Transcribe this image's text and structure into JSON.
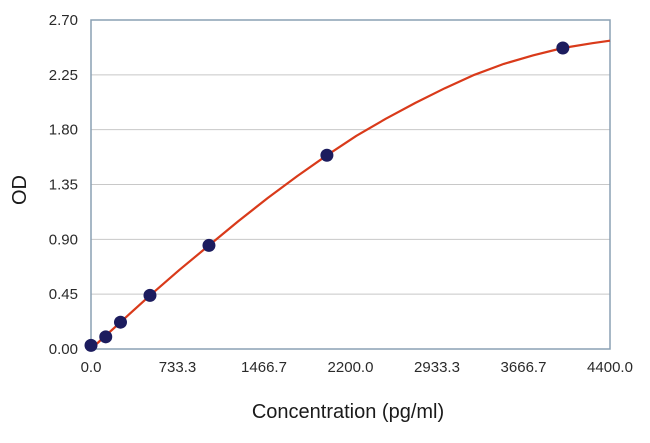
{
  "chart_data": {
    "type": "scatter",
    "title": "",
    "xlabel": "Concentration (pg/ml)",
    "ylabel": "OD",
    "xlim": [
      0,
      4400
    ],
    "ylim": [
      0,
      2.7
    ],
    "x_ticks": [
      "0.0",
      "733.3",
      "1466.7",
      "2200.0",
      "2933.3",
      "3666.7",
      "4400.0"
    ],
    "y_ticks": [
      "0.00",
      "0.45",
      "0.90",
      "1.35",
      "1.80",
      "2.25",
      "2.70"
    ],
    "grid": "horizontal",
    "legend": "none",
    "series": [
      {
        "type": "scatter",
        "x": [
          0,
          125,
          250,
          500,
          1000,
          2000,
          4000
        ],
        "y": [
          0.03,
          0.1,
          0.22,
          0.44,
          0.85,
          1.59,
          2.47
        ]
      },
      {
        "type": "line",
        "x": [
          0,
          250,
          500,
          750,
          1000,
          1250,
          1500,
          1750,
          2000,
          2250,
          2500,
          2750,
          3000,
          3250,
          3500,
          3750,
          4000,
          4250,
          4400
        ],
        "y": [
          0.0,
          0.22,
          0.44,
          0.65,
          0.85,
          1.05,
          1.24,
          1.42,
          1.59,
          1.75,
          1.89,
          2.02,
          2.14,
          2.25,
          2.34,
          2.41,
          2.47,
          2.51,
          2.53
        ]
      }
    ],
    "colors": {
      "points": "#1c1c5e",
      "curve": "#d93a1a",
      "plot_border": "#8aa0b4",
      "grid": "#c8c8c8"
    }
  }
}
